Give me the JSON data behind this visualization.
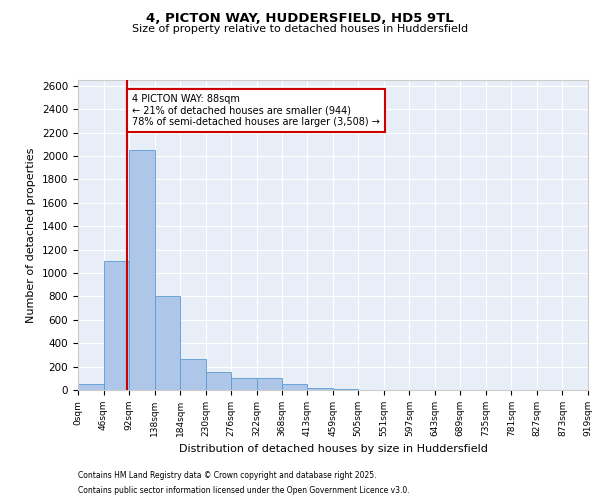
{
  "title_line1": "4, PICTON WAY, HUDDERSFIELD, HD5 9TL",
  "title_line2": "Size of property relative to detached houses in Huddersfield",
  "xlabel": "Distribution of detached houses by size in Huddersfield",
  "ylabel": "Number of detached properties",
  "footnote1": "Contains HM Land Registry data © Crown copyright and database right 2025.",
  "footnote2": "Contains public sector information licensed under the Open Government Licence v3.0.",
  "annotation_title": "4 PICTON WAY: 88sqm",
  "annotation_line1": "← 21% of detached houses are smaller (944)",
  "annotation_line2": "78% of semi-detached houses are larger (3,508) →",
  "property_size": 88,
  "bar_edges": [
    0,
    46,
    92,
    138,
    184,
    230,
    276,
    322,
    368,
    413,
    459,
    505,
    551,
    597,
    643,
    689,
    735,
    781,
    827,
    873,
    919
  ],
  "bar_heights": [
    50,
    1100,
    2050,
    800,
    265,
    150,
    100,
    100,
    50,
    15,
    5,
    0,
    0,
    0,
    0,
    0,
    0,
    0,
    0,
    0
  ],
  "bar_color": "#aec6e8",
  "bar_edge_color": "#5b9bd5",
  "line_color": "#cc0000",
  "bg_color": "#e8eef7",
  "annotation_box_color": "#cc0000",
  "ylim": [
    0,
    2650
  ],
  "yticks": [
    0,
    200,
    400,
    600,
    800,
    1000,
    1200,
    1400,
    1600,
    1800,
    2000,
    2200,
    2400,
    2600
  ]
}
